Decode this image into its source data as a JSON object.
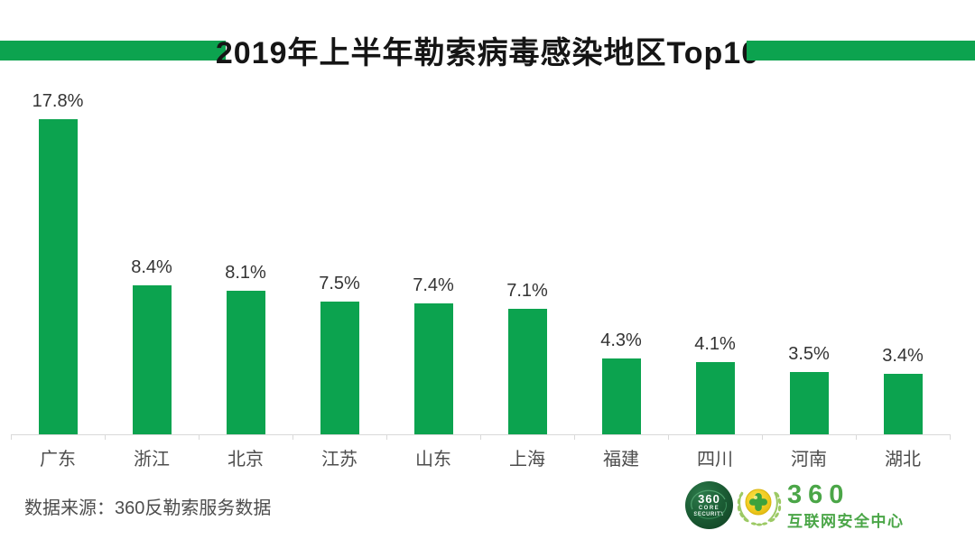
{
  "title": {
    "text": "2019年上半年勒索病毒感染地区Top10"
  },
  "chart_data": {
    "type": "bar",
    "title": "2019年上半年勒索病毒感染地区Top10",
    "categories": [
      "广东",
      "浙江",
      "北京",
      "江苏",
      "山东",
      "上海",
      "福建",
      "四川",
      "河南",
      "湖北"
    ],
    "values": [
      17.8,
      8.4,
      8.1,
      7.5,
      7.4,
      7.1,
      4.3,
      4.1,
      3.5,
      3.4
    ],
    "value_labels": [
      "17.8%",
      "8.4%",
      "8.1%",
      "7.5%",
      "7.4%",
      "7.1%",
      "4.3%",
      "4.1%",
      "3.5%",
      "3.4%"
    ],
    "unit": "%",
    "xlabel": "",
    "ylabel": "",
    "ylim": [
      0,
      18
    ],
    "grid": false,
    "legend": false,
    "bar_color": "#0ca34f"
  },
  "footer": {
    "source": "数据来源：360反勒索服务数据",
    "badge": {
      "line1": "360",
      "line2": "CORE",
      "line3": "SECURITY"
    },
    "brand": {
      "name": "360",
      "subtitle": "互联网安全中心"
    }
  },
  "colors": {
    "green": "#0ca34f",
    "brand_green": "#4ba648",
    "axis": "#d9d9d9",
    "title_text": "#151515",
    "value_text": "#333333",
    "category_text": "#4d4d4d"
  }
}
